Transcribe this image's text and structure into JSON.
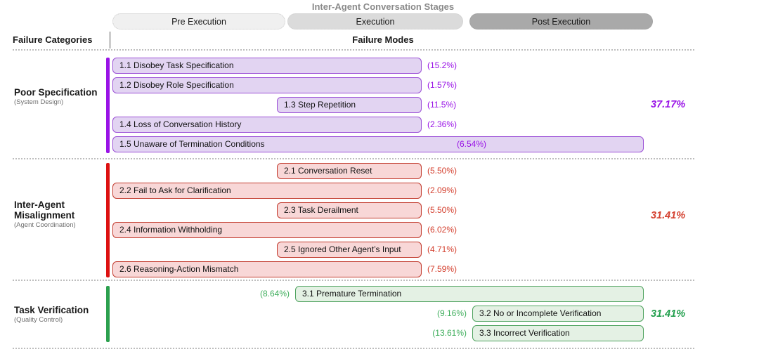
{
  "header": {
    "stages_title": "Inter-Agent Conversation Stages",
    "stages": [
      {
        "label": "Pre Execution",
        "fill": "#f0f0f0"
      },
      {
        "label": "Execution",
        "fill": "#dbdbdb"
      },
      {
        "label": "Post Execution",
        "fill": "#a9a9a9"
      }
    ],
    "categories_label": "Failure Categories",
    "modes_label": "Failure Modes"
  },
  "sections": [
    {
      "name": "Poor Specification",
      "subtitle": "(System Design)",
      "total": "37.17%",
      "colors": {
        "accent": "#9913e6",
        "bar_border": "#9b4fd6",
        "bar_fill": "#e2d4f2",
        "pct_text": "#9913e6",
        "total_text": "#9913e6"
      },
      "pct_side": "right",
      "rows": [
        {
          "label": "1.1 Disobey Task Specification",
          "pct": "(15.2%)",
          "span": [
            160,
            600
          ]
        },
        {
          "label": "1.2 Disobey Role Specification",
          "pct": "(1.57%)",
          "span": [
            160,
            600
          ]
        },
        {
          "label": "1.3 Step Repetition",
          "pct": "(11.5%)",
          "span": [
            394,
            600
          ]
        },
        {
          "label": "1.4 Loss of Conversation History",
          "pct": "(2.36%)",
          "span": [
            160,
            600
          ]
        },
        {
          "label": "1.5 Unaware of Termination Conditions",
          "pct": "(6.54%)",
          "span": [
            160,
            916
          ],
          "pct_x": 650
        }
      ]
    },
    {
      "name": "Inter-Agent Misalignment",
      "subtitle": "(Agent Coordination)",
      "total": "31.41%",
      "colors": {
        "accent": "#dd1111",
        "bar_border": "#c23b2e",
        "bar_fill": "#f8d7d7",
        "pct_text": "#d4402f",
        "total_text": "#d4402f"
      },
      "pct_side": "right",
      "rows": [
        {
          "label": "2.1 Conversation Reset",
          "pct": "(5.50%)",
          "span": [
            394,
            600
          ]
        },
        {
          "label": "2.2 Fail to Ask for Clarification",
          "pct": "(2.09%)",
          "span": [
            160,
            600
          ]
        },
        {
          "label": "2.3 Task Derailment",
          "pct": "(5.50%)",
          "span": [
            394,
            600
          ]
        },
        {
          "label": "2.4 Information Withholding",
          "pct": "(6.02%)",
          "span": [
            160,
            600
          ]
        },
        {
          "label": "2.5 Ignored Other Agent’s Input",
          "pct": "(4.71%)",
          "span": [
            394,
            600
          ]
        },
        {
          "label": "2.6 Reasoning-Action Mismatch",
          "pct": "(7.59%)",
          "span": [
            160,
            600
          ]
        }
      ]
    },
    {
      "name": "Task Verification",
      "subtitle": "(Quality Control)",
      "total": "31.41%",
      "colors": {
        "accent": "#2ca04e",
        "bar_border": "#4fa35f",
        "bar_fill": "#e4f1e4",
        "pct_text": "#3fae5c",
        "total_text": "#1f9e4b"
      },
      "pct_side": "left",
      "rows": [
        {
          "label": "3.1  Premature Termination",
          "pct": "(8.64%)",
          "span": [
            420,
            916
          ]
        },
        {
          "label": "3.2 No or Incomplete Verification",
          "pct": "(9.16%)",
          "span": [
            672,
            916
          ]
        },
        {
          "label": "3.3 Incorrect Verification",
          "pct": "(13.61%)",
          "span": [
            672,
            916
          ]
        }
      ]
    }
  ]
}
